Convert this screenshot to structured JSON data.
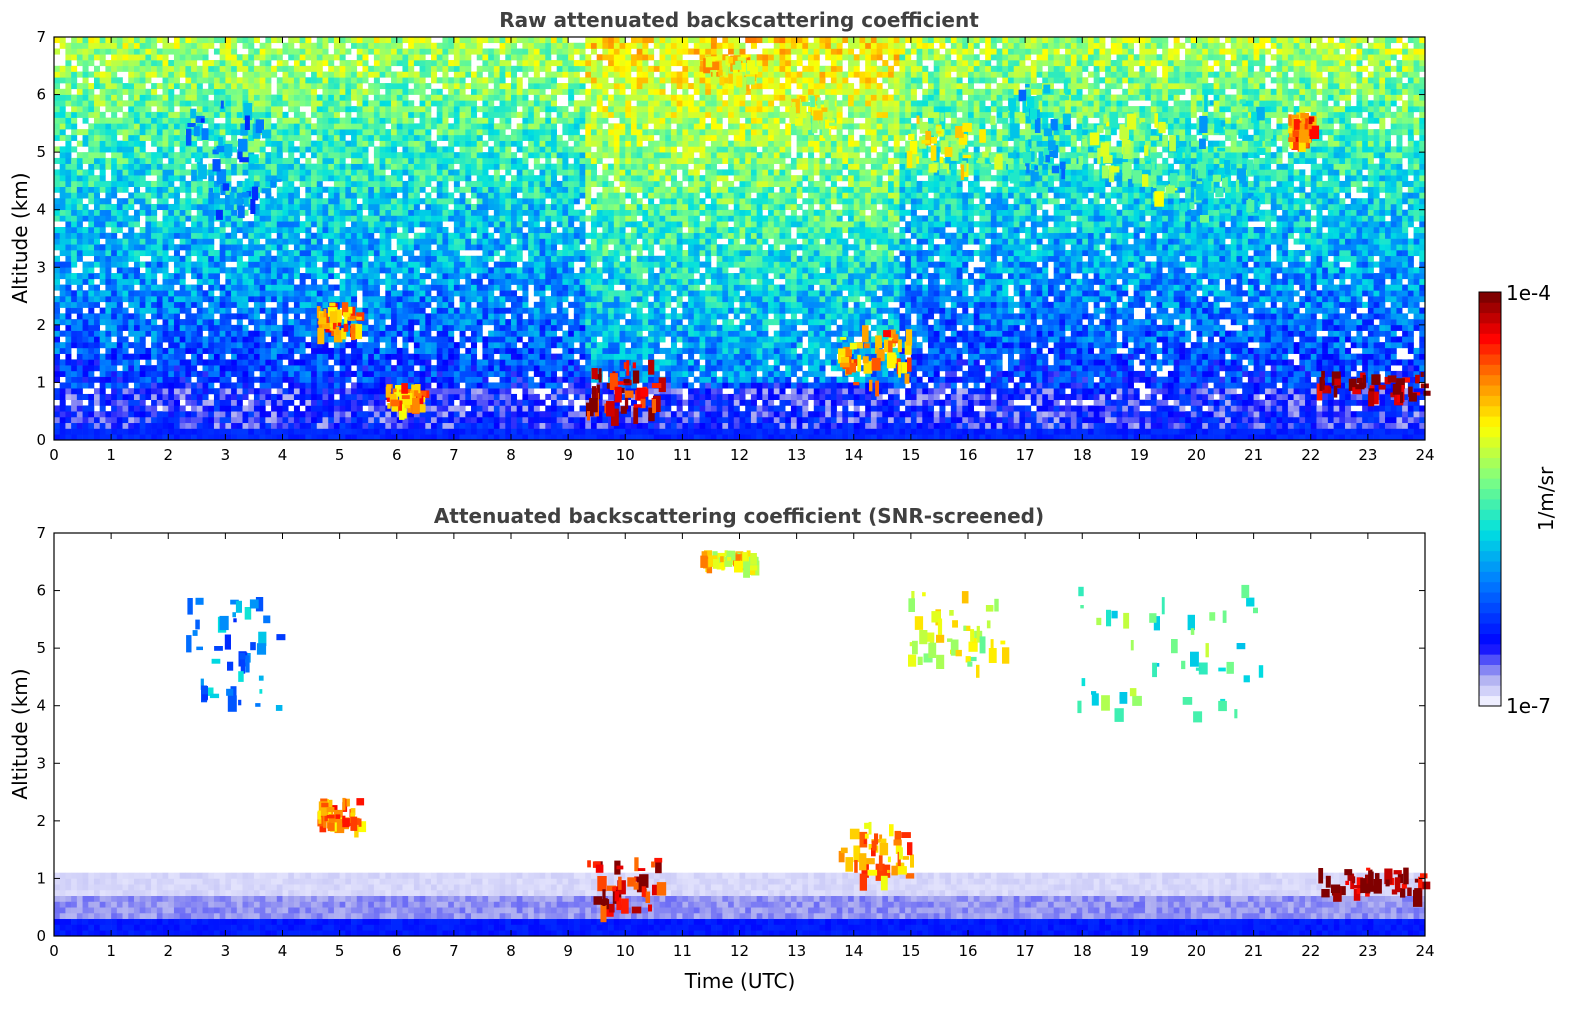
{
  "chart_data": [
    {
      "type": "heatmap",
      "title": "Raw attenuated backscattering coefficient",
      "xlabel": "",
      "ylabel": "Altitude (km)",
      "xlim": [
        0,
        24
      ],
      "ylim": [
        0,
        7
      ],
      "x_ticks": [
        "0",
        "1",
        "2",
        "3",
        "4",
        "5",
        "6",
        "7",
        "8",
        "9",
        "10",
        "11",
        "12",
        "13",
        "14",
        "15",
        "16",
        "17",
        "18",
        "19",
        "20",
        "21",
        "22",
        "23",
        "24"
      ],
      "y_ticks": [
        "0",
        "1",
        "2",
        "3",
        "4",
        "5",
        "6",
        "7"
      ],
      "features": [
        {
          "t0": 2.3,
          "t1": 3.9,
          "z0": 3.9,
          "z1": 5.9,
          "value": 4.0
        },
        {
          "t0": 4.6,
          "t1": 5.3,
          "z0": 1.9,
          "z1": 2.4,
          "value": 5.5
        },
        {
          "t0": 5.8,
          "t1": 6.4,
          "z0": 0.6,
          "z1": 1.0,
          "value": 5.5
        },
        {
          "t0": 9.3,
          "t1": 10.6,
          "z0": 0.5,
          "z1": 1.4,
          "value": 6.0
        },
        {
          "t0": 11.3,
          "t1": 12.2,
          "z0": 6.3,
          "z1": 6.7,
          "value": 5.2
        },
        {
          "t0": 12.8,
          "t1": 13.6,
          "z0": 5.5,
          "z1": 6.0,
          "value": 5.0
        },
        {
          "t0": 13.7,
          "t1": 15.0,
          "z0": 1.0,
          "z1": 2.0,
          "value": 5.5
        },
        {
          "t0": 14.9,
          "t1": 16.6,
          "z0": 4.7,
          "z1": 5.7,
          "value": 5.0
        },
        {
          "t0": 16.7,
          "t1": 17.8,
          "z0": 4.5,
          "z1": 6.3,
          "value": 4.2
        },
        {
          "t0": 17.9,
          "t1": 19.6,
          "z0": 4.3,
          "z1": 5.7,
          "value": 4.8
        },
        {
          "t0": 19.6,
          "t1": 21.2,
          "z0": 3.9,
          "z1": 6.1,
          "value": 4.4
        },
        {
          "t0": 21.6,
          "t1": 22.0,
          "z0": 5.2,
          "z1": 5.7,
          "value": 5.6
        },
        {
          "t0": 22.1,
          "t1": 24.0,
          "z0": 0.8,
          "z1": 1.2,
          "value": 6.2
        }
      ]
    },
    {
      "type": "heatmap",
      "title": "Attenuated backscattering coefficient (SNR-screened)",
      "xlabel": "Time (UTC)",
      "ylabel": "Altitude (km)",
      "xlim": [
        0,
        24
      ],
      "ylim": [
        0,
        7
      ],
      "x_ticks": [
        "0",
        "1",
        "2",
        "3",
        "4",
        "5",
        "6",
        "7",
        "8",
        "9",
        "10",
        "11",
        "12",
        "13",
        "14",
        "15",
        "16",
        "17",
        "18",
        "19",
        "20",
        "21",
        "22",
        "23",
        "24"
      ],
      "y_ticks": [
        "0",
        "1",
        "2",
        "3",
        "4",
        "5",
        "6",
        "7"
      ],
      "features": [
        {
          "t0": 2.3,
          "t1": 3.9,
          "z0": 3.9,
          "z1": 5.9,
          "value": 4.0
        },
        {
          "t0": 4.6,
          "t1": 5.3,
          "z0": 1.9,
          "z1": 2.4,
          "value": 5.5
        },
        {
          "t0": 9.3,
          "t1": 10.6,
          "z0": 0.5,
          "z1": 1.4,
          "value": 6.0
        },
        {
          "t0": 11.3,
          "t1": 12.2,
          "z0": 6.5,
          "z1": 6.7,
          "value": 5.2
        },
        {
          "t0": 13.7,
          "t1": 15.0,
          "z0": 1.0,
          "z1": 2.0,
          "value": 5.5
        },
        {
          "t0": 14.9,
          "t1": 16.6,
          "z0": 4.7,
          "z1": 6.0,
          "value": 5.0
        },
        {
          "t0": 17.9,
          "t1": 21.2,
          "z0": 3.9,
          "z1": 6.1,
          "value": 4.6
        },
        {
          "t0": 22.1,
          "t1": 24.0,
          "z0": 0.8,
          "z1": 1.2,
          "value": 6.2
        }
      ]
    }
  ],
  "colorbar": {
    "label": "1/m/sr",
    "max_label": "1e-4",
    "min_label": "1e-7",
    "range": [
      1e-07,
      0.0001
    ],
    "scale": "log",
    "colors": [
      "#eeeeff",
      "#b0b0f0",
      "#0000ff",
      "#0080ff",
      "#00e0e0",
      "#80ff80",
      "#ffff00",
      "#ff8000",
      "#ff0000",
      "#800000"
    ]
  }
}
